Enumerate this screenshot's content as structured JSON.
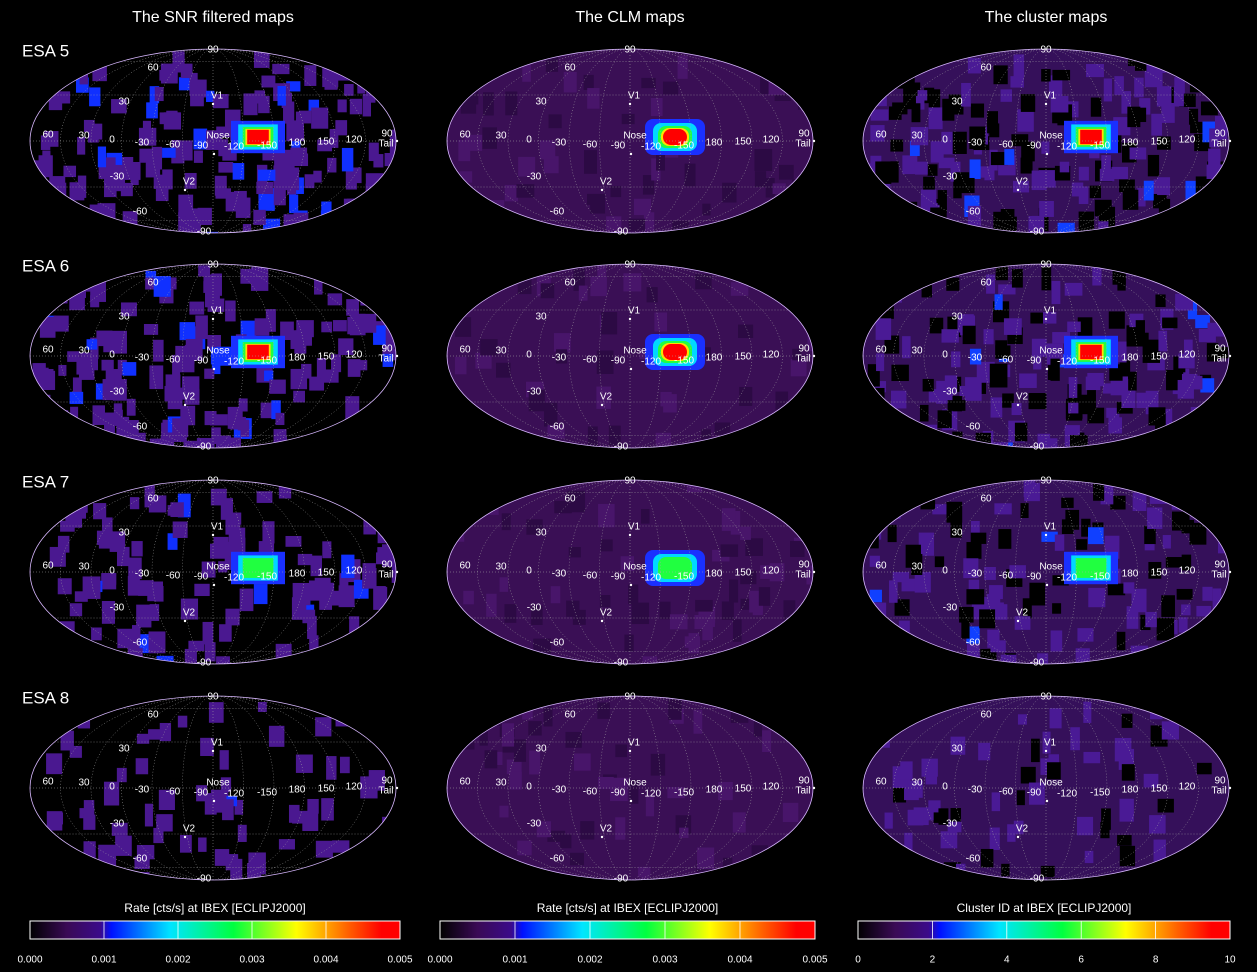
{
  "rows": [
    "ESA 5",
    "ESA 6",
    "ESA 7",
    "ESA 8"
  ],
  "columns": [
    {
      "title": "The SNR filtered maps",
      "colorbar": {
        "label": "Rate [cts/s] at IBEX [ECLIPJ2000]",
        "range": [
          0,
          0.005
        ],
        "ticks": [
          {
            "value": 0,
            "label": "0.000"
          },
          {
            "value": 0.001,
            "label": "0.001"
          },
          {
            "value": 0.002,
            "label": "0.002"
          },
          {
            "value": 0.003,
            "label": "0.003"
          },
          {
            "value": 0.004,
            "label": "0.004"
          },
          {
            "value": 0.005,
            "label": "0.005"
          }
        ]
      }
    },
    {
      "title": "The CLM maps",
      "colorbar": {
        "label": "Rate [cts/s] at IBEX [ECLIPJ2000]",
        "range": [
          0,
          0.005
        ],
        "ticks": [
          {
            "value": 0,
            "label": "0.000"
          },
          {
            "value": 0.001,
            "label": "0.001"
          },
          {
            "value": 0.002,
            "label": "0.002"
          },
          {
            "value": 0.003,
            "label": "0.003"
          },
          {
            "value": 0.004,
            "label": "0.004"
          },
          {
            "value": 0.005,
            "label": "0.005"
          }
        ]
      }
    },
    {
      "title": "The cluster maps",
      "colorbar": {
        "label": "Cluster ID at IBEX [ECLIPJ2000]",
        "range": [
          0,
          10
        ],
        "ticks": [
          0,
          2,
          4,
          6,
          8,
          10
        ]
      }
    }
  ],
  "map_labels": [
    "90",
    "60",
    "30",
    "V1",
    "60",
    "30",
    "0",
    "-30",
    "-60",
    "-90",
    "Nose",
    "-120",
    "-150",
    "180",
    "150",
    "120",
    "90",
    "Tail",
    "-30",
    "V2",
    "-60",
    "-90"
  ]
}
